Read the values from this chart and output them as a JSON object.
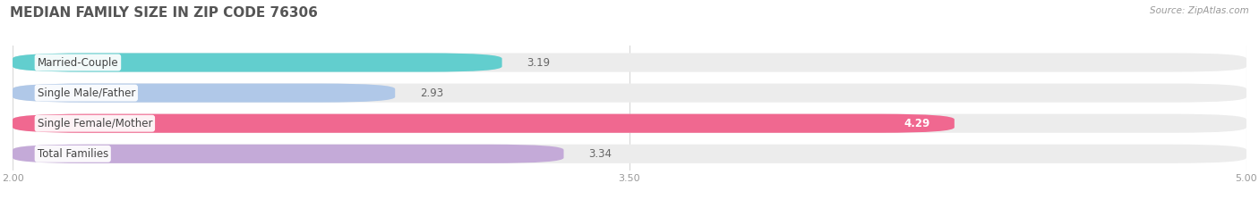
{
  "title": "MEDIAN FAMILY SIZE IN ZIP CODE 76306",
  "source": "Source: ZipAtlas.com",
  "categories": [
    "Married-Couple",
    "Single Male/Father",
    "Single Female/Mother",
    "Total Families"
  ],
  "values": [
    3.19,
    2.93,
    4.29,
    3.34
  ],
  "colors": [
    "#62cece",
    "#b0c8e8",
    "#f06890",
    "#c4aad8"
  ],
  "xlim": [
    2.0,
    5.0
  ],
  "xticks": [
    2.0,
    3.5,
    5.0
  ],
  "bar_height": 0.62,
  "background_color": "#ffffff",
  "bar_bg_color": "#ececec",
  "label_fontsize": 8.5,
  "value_fontsize": 8.5,
  "title_fontsize": 11,
  "value_inside_idx": 2
}
